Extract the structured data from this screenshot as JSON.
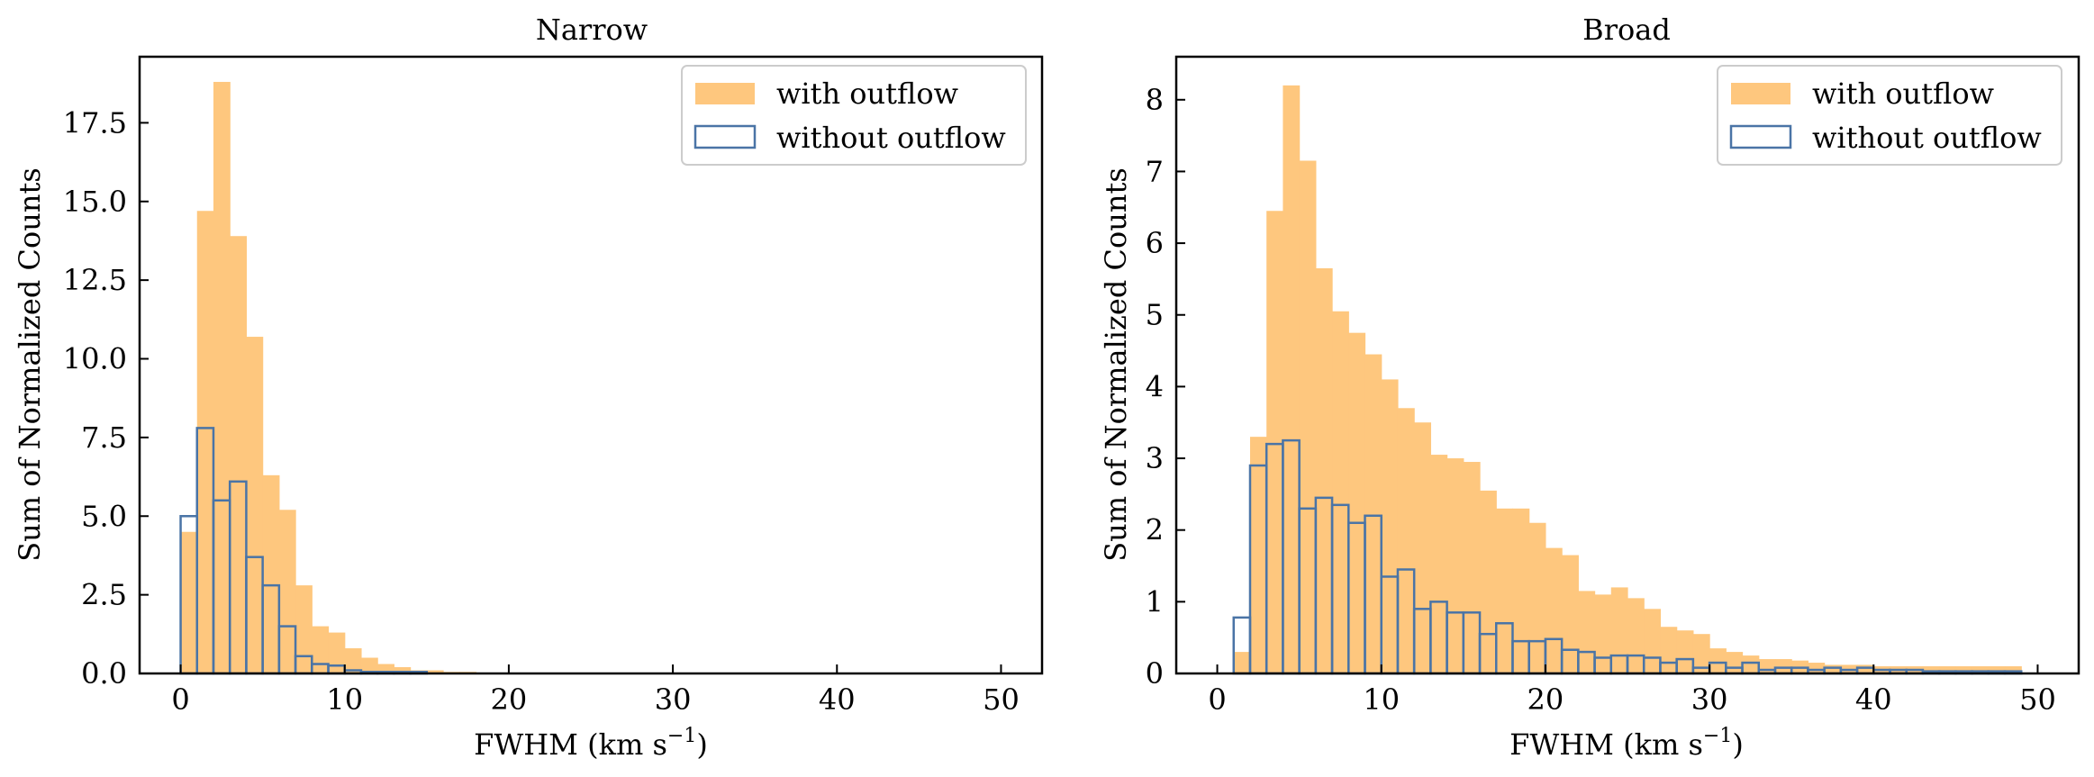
{
  "colors": {
    "with_outflow": "#fec77e",
    "without_outflow": "#4a74a6"
  },
  "chart_data": [
    {
      "type": "bar",
      "title": "Narrow",
      "xlabel_main": "FWHM (km s",
      "xlabel_sup": "−1",
      "xlabel_close": ")",
      "ylabel": "Sum of Normalized Counts",
      "xlim": [
        -2.5,
        52.5
      ],
      "ylim": [
        0,
        19.6
      ],
      "xticks": [
        0,
        10,
        20,
        30,
        40,
        50
      ],
      "xtick_labels": [
        "0",
        "10",
        "20",
        "30",
        "40",
        "50"
      ],
      "yticks": [
        0,
        2.5,
        5,
        7.5,
        10,
        12.5,
        15,
        17.5
      ],
      "ytick_labels": [
        "0.0",
        "2.5",
        "5.0",
        "7.5",
        "10.0",
        "12.5",
        "15.0",
        "17.5"
      ],
      "bin_start": 0,
      "bin_width": 1,
      "legend": {
        "placement": "top-right",
        "entries": [
          "with outflow",
          "without outflow"
        ]
      },
      "series": [
        {
          "name": "with outflow",
          "style": "filled",
          "values": [
            4.5,
            14.7,
            18.8,
            13.9,
            10.7,
            6.3,
            5.2,
            2.8,
            1.5,
            1.3,
            0.8,
            0.5,
            0.3,
            0.2,
            0.1,
            0.1,
            0.05,
            0.05
          ]
        },
        {
          "name": "without outflow",
          "style": "step",
          "values": [
            5.0,
            7.8,
            5.5,
            6.1,
            3.7,
            2.8,
            1.5,
            0.55,
            0.3,
            0.25,
            0.1,
            0.05,
            0.05,
            0.05,
            0.05,
            0.0,
            0.0,
            0.0
          ]
        }
      ]
    },
    {
      "type": "bar",
      "title": "Broad",
      "xlabel_main": "FWHM (km s",
      "xlabel_sup": "−1",
      "xlabel_close": ")",
      "ylabel": "Sum of Normalized Counts",
      "xlim": [
        -2.5,
        52.5
      ],
      "ylim": [
        0,
        8.6
      ],
      "xticks": [
        0,
        10,
        20,
        30,
        40,
        50
      ],
      "xtick_labels": [
        "0",
        "10",
        "20",
        "30",
        "40",
        "50"
      ],
      "yticks": [
        0,
        1,
        2,
        3,
        4,
        5,
        6,
        7,
        8
      ],
      "ytick_labels": [
        "0",
        "1",
        "2",
        "3",
        "4",
        "5",
        "6",
        "7",
        "8"
      ],
      "bin_start": 1,
      "bin_width": 1,
      "legend": {
        "placement": "top-right",
        "entries": [
          "with outflow",
          "without outflow"
        ]
      },
      "series": [
        {
          "name": "with outflow",
          "style": "filled",
          "values": [
            0.3,
            3.3,
            6.45,
            8.2,
            7.15,
            5.65,
            5.05,
            4.75,
            4.45,
            4.1,
            3.7,
            3.5,
            3.05,
            3.0,
            2.95,
            2.55,
            2.3,
            2.3,
            2.1,
            1.75,
            1.65,
            1.15,
            1.1,
            1.2,
            1.05,
            0.9,
            0.65,
            0.6,
            0.55,
            0.35,
            0.3,
            0.25,
            0.2,
            0.2,
            0.18,
            0.15,
            0.12,
            0.12,
            0.12,
            0.1,
            0.1,
            0.1,
            0.1,
            0.1,
            0.1,
            0.1,
            0.1,
            0.1,
            0.0
          ]
        },
        {
          "name": "without outflow",
          "style": "step",
          "values": [
            0.78,
            2.9,
            3.2,
            3.25,
            2.3,
            2.45,
            2.35,
            2.1,
            2.2,
            1.35,
            1.45,
            0.9,
            1.0,
            0.85,
            0.85,
            0.55,
            0.7,
            0.45,
            0.45,
            0.48,
            0.33,
            0.3,
            0.22,
            0.25,
            0.25,
            0.22,
            0.15,
            0.2,
            0.08,
            0.15,
            0.08,
            0.15,
            0.05,
            0.08,
            0.08,
            0.05,
            0.08,
            0.05,
            0.08,
            0.05,
            0.05,
            0.05,
            0.03,
            0.03,
            0.03,
            0.03,
            0.03,
            0.03,
            0.0
          ]
        }
      ]
    }
  ]
}
